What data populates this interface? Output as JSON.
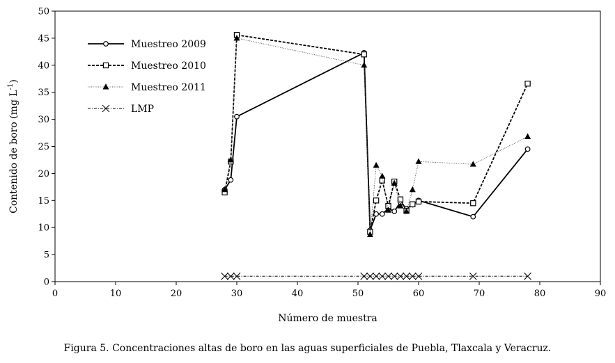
{
  "chart_data": {
    "type": "line",
    "title": "",
    "xlabel": "Número de muestra",
    "ylabel": "Contenido de boro (mg L",
    "ylabel_sup": "-1",
    "ylabel_end": ")",
    "xlim": [
      0,
      90
    ],
    "ylim": [
      0,
      50
    ],
    "xticks": [
      0,
      10,
      20,
      30,
      40,
      50,
      60,
      70,
      80,
      90
    ],
    "yticks": [
      0,
      5,
      10,
      15,
      20,
      25,
      30,
      35,
      40,
      45,
      50
    ],
    "grid": false,
    "legend_position": "top-left",
    "series": [
      {
        "name": "Muestreo 2009",
        "marker": "circle",
        "dash": "solid",
        "x": [
          28,
          29,
          30,
          51,
          52,
          53,
          54,
          55,
          56,
          57,
          58,
          59,
          60,
          69,
          78
        ],
        "y": [
          17,
          18.8,
          30.5,
          42.3,
          9.5,
          12.5,
          12.5,
          13.5,
          13,
          14.7,
          13.5,
          14.2,
          15,
          12,
          24.5
        ]
      },
      {
        "name": "Muestreo 2010",
        "marker": "square",
        "dash": "dashed",
        "x": [
          28,
          29,
          30,
          51,
          52,
          53,
          54,
          55,
          56,
          57,
          58,
          59,
          60,
          69,
          78
        ],
        "y": [
          16.5,
          22.2,
          45.6,
          42,
          9.2,
          15,
          18.7,
          14,
          18.5,
          15.2,
          13.1,
          14.3,
          14.8,
          14.5,
          36.6
        ]
      },
      {
        "name": "Muestreo 2011",
        "marker": "triangle",
        "dash": "dotted",
        "x": [
          28,
          29,
          30,
          51,
          52,
          53,
          54,
          55,
          56,
          57,
          58,
          59,
          60,
          69,
          78
        ],
        "y": [
          17,
          22.5,
          45,
          40,
          8.7,
          21.5,
          19.5,
          13.2,
          18.2,
          14,
          13,
          17,
          22.2,
          21.7,
          26.8
        ]
      },
      {
        "name": "LMP",
        "marker": "x",
        "dash": "dashdot",
        "x": [
          28,
          29,
          30,
          51,
          52,
          53,
          54,
          55,
          56,
          57,
          58,
          59,
          60,
          69,
          78
        ],
        "y": [
          1,
          1,
          1,
          1,
          1,
          1,
          1,
          1,
          1,
          1,
          1,
          1,
          1,
          1,
          1
        ]
      }
    ]
  },
  "caption": "Figura 5. Concentraciones altas de boro en las aguas superficiales de Puebla, Tlaxcala y Veracruz."
}
